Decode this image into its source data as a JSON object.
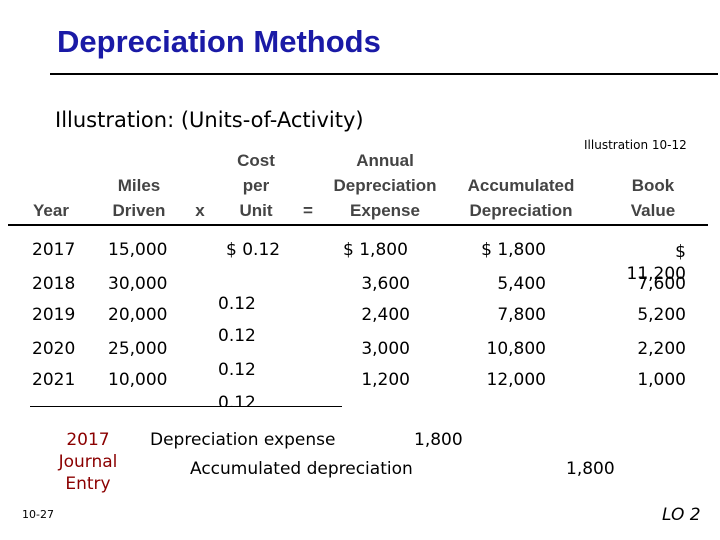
{
  "title": "Depreciation Methods",
  "subtitle": "Illustration:  (Units-of-Activity)",
  "illustration_ref": "Illustration 10-12",
  "headers": {
    "year": "Year",
    "miles": [
      "Miles",
      "Driven"
    ],
    "x": "x",
    "cost": [
      "Cost",
      "per",
      "Unit"
    ],
    "eq": "=",
    "annual": [
      "Annual",
      "Depreciation",
      "Expense"
    ],
    "accum": [
      "Accumulated",
      "Depreciation"
    ],
    "book": [
      "Book",
      "Value"
    ]
  },
  "rows": [
    {
      "year": "2017",
      "miles": "15,000",
      "cost": "$ 0.12",
      "expense": "$ 1,800",
      "accum": "$ 1,800",
      "book": "$ 11,200"
    },
    {
      "year": "2018",
      "miles": "30,000",
      "cost": "0.12",
      "expense": "3,600",
      "accum": "5,400",
      "book": "7,600"
    },
    {
      "year": "2019",
      "miles": "20,000",
      "cost": "0.12",
      "expense": "2,400",
      "accum": "7,800",
      "book": "5,200"
    },
    {
      "year": "2020",
      "miles": "25,000",
      "cost": "0.12",
      "expense": "3,000",
      "accum": "10,800",
      "book": "2,200"
    },
    {
      "year": "2021",
      "miles": "10,000",
      "cost": "0.12",
      "expense": "1,200",
      "accum": "12,000",
      "book": "1,000"
    }
  ],
  "journal": {
    "label": [
      "2017",
      "Journal",
      "Entry"
    ],
    "debit_account": "Depreciation expense",
    "debit_amount": "1,800",
    "credit_account": "Accumulated depreciation",
    "credit_amount": "1,800"
  },
  "footer": {
    "page": "10-27",
    "lo": "LO 2"
  }
}
